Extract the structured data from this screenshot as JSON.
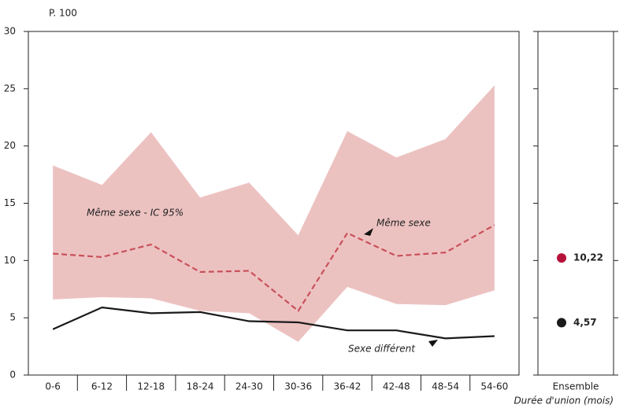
{
  "chart_data": {
    "type": "line",
    "y_label": "P. 100",
    "x_label": "Durée d'union (mois)",
    "categories": [
      "0-6",
      "6-12",
      "12-18",
      "18-24",
      "24-30",
      "30-36",
      "36-42",
      "42-48",
      "48-54",
      "54-60"
    ],
    "ylim": [
      0,
      30
    ],
    "yticks": [
      0,
      5,
      10,
      15,
      20,
      25,
      30
    ],
    "band": {
      "name": "Même sexe - IC 95%",
      "color": "#ecc2c1",
      "upper": [
        18.3,
        16.6,
        21.2,
        15.5,
        16.8,
        12.2,
        21.3,
        19.0,
        20.6,
        25.3
      ],
      "lower": [
        6.6,
        6.8,
        6.7,
        5.6,
        5.4,
        2.9,
        7.7,
        6.2,
        6.1,
        7.4
      ]
    },
    "series": [
      {
        "name": "Même sexe",
        "color": "#c9515b",
        "dashed": true,
        "values": [
          10.6,
          10.3,
          11.4,
          9.0,
          9.1,
          5.6,
          12.4,
          10.4,
          10.7,
          13.1
        ]
      },
      {
        "name": "Sexe différent",
        "color": "#1a1a1a",
        "dashed": false,
        "values": [
          4.0,
          5.9,
          5.4,
          5.5,
          4.7,
          4.6,
          3.9,
          3.9,
          3.2,
          3.4
        ]
      }
    ],
    "overall": {
      "category": "Ensemble",
      "values": [
        10.22,
        4.57
      ],
      "value_labels": [
        "10,22",
        "4,57"
      ],
      "colors": [
        "#b5123a",
        "#1a1a1a"
      ]
    }
  }
}
